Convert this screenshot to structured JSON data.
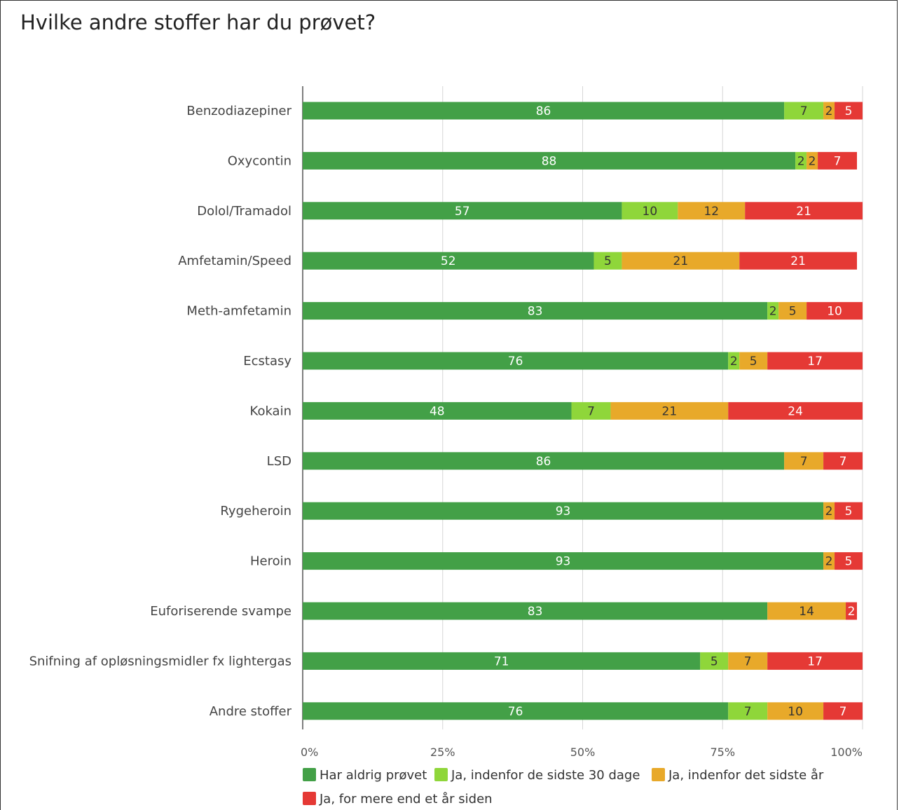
{
  "chart_data": {
    "type": "bar",
    "orientation": "horizontal",
    "stacked": "percent",
    "title": "Hvilke andre stoffer har du prøvet?",
    "categories": [
      "Benzodiazepiner",
      "Oxycontin",
      "Dolol/Tramadol",
      "Amfetamin/Speed",
      "Meth-amfetamin",
      "Ecstasy",
      "Kokain",
      "LSD",
      "Rygeheroin",
      "Heroin",
      "Euforiserende svampe",
      "Snifning af opløsningsmidler fx lightergas",
      "Andre stoffer"
    ],
    "series": [
      {
        "name": "Har aldrig prøvet",
        "color": "#43a047",
        "label_color": "#ffffff",
        "values": [
          86,
          88,
          57,
          52,
          83,
          76,
          48,
          86,
          93,
          93,
          83,
          71,
          76
        ]
      },
      {
        "name": "Ja, indenfor de sidste 30 dage",
        "color": "#8fd63a",
        "label_color": "#333333",
        "values": [
          7,
          2,
          10,
          5,
          2,
          2,
          7,
          null,
          null,
          null,
          null,
          5,
          7
        ]
      },
      {
        "name": "Ja, indenfor det sidste år",
        "color": "#e8a92a",
        "label_color": "#333333",
        "values": [
          2,
          2,
          12,
          21,
          5,
          5,
          21,
          7,
          2,
          2,
          14,
          7,
          10
        ]
      },
      {
        "name": "Ja, for mere end et år siden",
        "color": "#e53935",
        "label_color": "#ffffff",
        "values": [
          5,
          7,
          21,
          21,
          10,
          17,
          24,
          7,
          5,
          5,
          2,
          17,
          7
        ]
      }
    ],
    "x_ticks": [
      "0%",
      "25%",
      "50%",
      "75%",
      "100%"
    ],
    "xlim": [
      0,
      100
    ],
    "grid": true,
    "legend_position": "bottom"
  }
}
